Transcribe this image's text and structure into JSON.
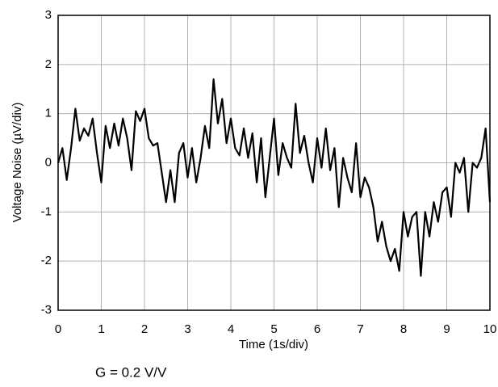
{
  "chart_data": {
    "type": "line",
    "x_label": "Time (1s/div)",
    "y_label": "Voltage Noise (µV/div)",
    "annotation": "G = 0.2 V/V",
    "x": [
      0,
      0.1,
      0.2,
      0.3,
      0.4,
      0.5,
      0.6,
      0.7,
      0.8,
      0.9,
      1,
      1.1,
      1.2,
      1.3,
      1.4,
      1.5,
      1.6,
      1.7,
      1.8,
      1.9,
      2,
      2.1,
      2.2,
      2.3,
      2.4,
      2.5,
      2.6,
      2.7,
      2.8,
      2.9,
      3,
      3.1,
      3.2,
      3.3,
      3.4,
      3.5,
      3.6,
      3.7,
      3.8,
      3.9,
      4,
      4.1,
      4.2,
      4.3,
      4.4,
      4.5,
      4.6,
      4.7,
      4.8,
      4.9,
      5,
      5.1,
      5.2,
      5.3,
      5.4,
      5.5,
      5.6,
      5.7,
      5.8,
      5.9,
      6,
      6.1,
      6.2,
      6.3,
      6.4,
      6.5,
      6.6,
      6.7,
      6.8,
      6.9,
      7,
      7.1,
      7.2,
      7.3,
      7.4,
      7.5,
      7.6,
      7.7,
      7.8,
      7.9,
      8,
      8.1,
      8.2,
      8.3,
      8.4,
      8.5,
      8.6,
      8.7,
      8.8,
      8.9,
      9,
      9.1,
      9.2,
      9.3,
      9.4,
      9.5,
      9.6,
      9.7,
      9.8,
      9.9,
      10
    ],
    "values": [
      0,
      0.3,
      -0.35,
      0.3,
      1.1,
      0.45,
      0.7,
      0.55,
      0.9,
      0.2,
      -0.4,
      0.75,
      0.3,
      0.8,
      0.35,
      0.9,
      0.5,
      -0.15,
      1.05,
      0.85,
      1.1,
      0.5,
      0.35,
      0.4,
      -0.2,
      -0.8,
      -0.15,
      -0.8,
      0.2,
      0.4,
      -0.3,
      0.3,
      -0.4,
      0.1,
      0.75,
      0.3,
      1.7,
      0.8,
      1.3,
      0.4,
      0.9,
      0.3,
      0.15,
      0.7,
      0.1,
      0.6,
      -0.4,
      0.5,
      -0.7,
      0.1,
      0.9,
      -0.25,
      0.4,
      0.1,
      -0.1,
      1.2,
      0.2,
      0.55,
      0,
      -0.4,
      0.5,
      -0.1,
      0.7,
      -0.15,
      0.3,
      -0.9,
      0.1,
      -0.3,
      -0.6,
      0.4,
      -0.7,
      -0.3,
      -0.5,
      -0.9,
      -1.6,
      -1.2,
      -1.7,
      -2,
      -1.75,
      -2.2,
      -1,
      -1.5,
      -1.1,
      -1,
      -2.3,
      -1,
      -1.5,
      -0.8,
      -1.2,
      -0.6,
      -0.5,
      -1.1,
      0,
      -0.2,
      0.1,
      -1,
      0,
      -0.1,
      0.1,
      0.7,
      -0.8
    ],
    "color": "#000000",
    "xlim": [
      0,
      10
    ],
    "xticks": [
      0,
      1,
      2,
      3,
      4,
      5,
      6,
      7,
      8,
      9,
      10
    ],
    "ylim": [
      -3,
      3
    ],
    "yticks": [
      -3,
      -2,
      -1,
      0,
      1,
      2,
      3
    ],
    "grid": true
  }
}
